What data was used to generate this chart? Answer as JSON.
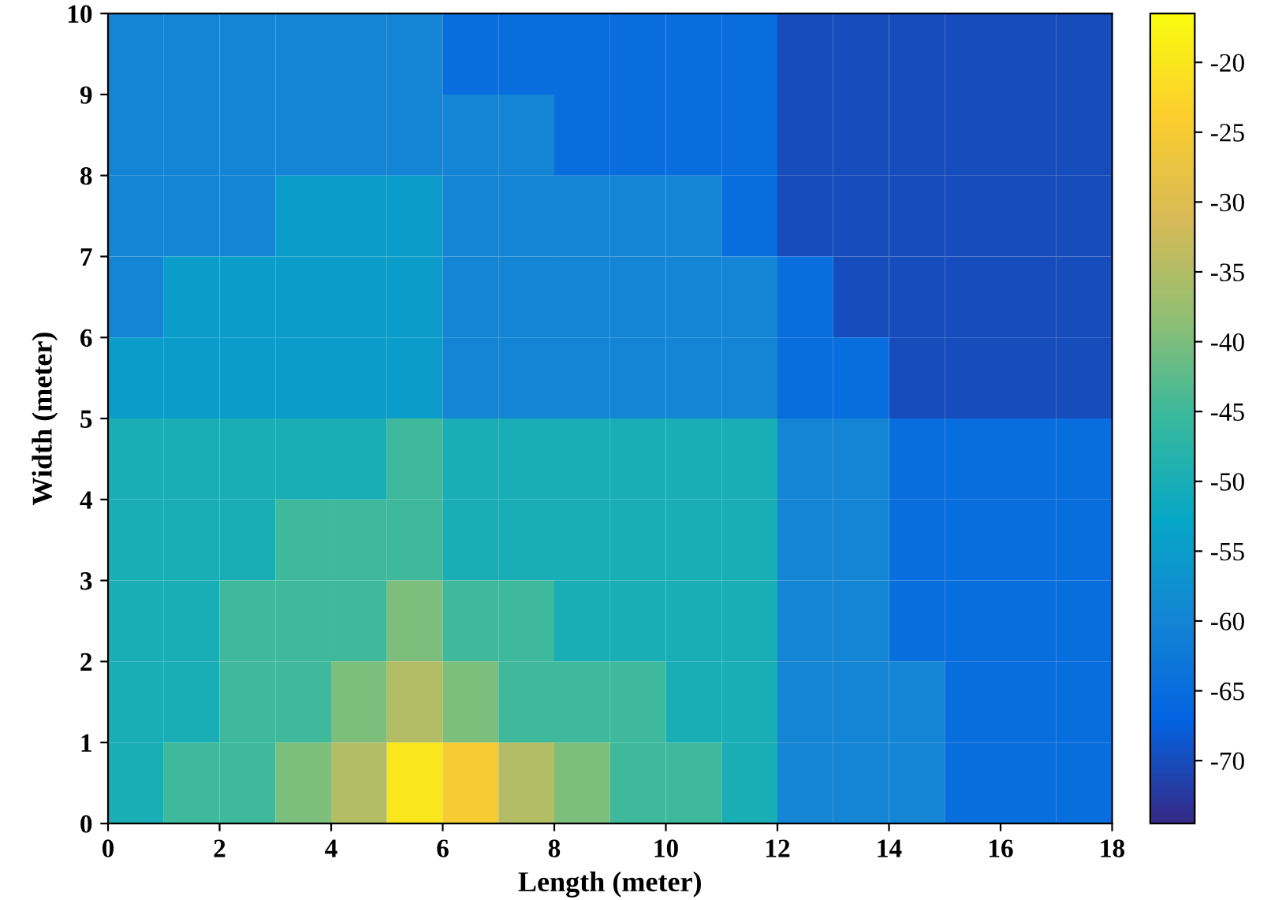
{
  "chart_data": {
    "type": "heatmap",
    "xlabel": "Length (meter)",
    "ylabel": "Width (meter)",
    "x": [
      0.5,
      1.5,
      2.5,
      3.5,
      4.5,
      5.5,
      6.5,
      7.5,
      8.5,
      9.5,
      10.5,
      11.5,
      12.5,
      13.5,
      14.5,
      15.5,
      16.5,
      17.5
    ],
    "y": [
      9.5,
      8.5,
      7.5,
      6.5,
      5.5,
      4.5,
      3.5,
      2.5,
      1.5,
      0.5
    ],
    "cells": [
      [
        -60,
        -60,
        -60,
        -60,
        -60,
        -60,
        -65,
        -65,
        -65,
        -65,
        -65,
        -65,
        -70,
        -70,
        -70,
        -70,
        -70,
        -70
      ],
      [
        -60,
        -60,
        -60,
        -60,
        -60,
        -60,
        -60,
        -60,
        -65,
        -65,
        -65,
        -65,
        -70,
        -70,
        -70,
        -70,
        -70,
        -70
      ],
      [
        -60,
        -60,
        -60,
        -55,
        -55,
        -55,
        -60,
        -60,
        -60,
        -60,
        -60,
        -65,
        -70,
        -70,
        -70,
        -70,
        -70,
        -70
      ],
      [
        -60,
        -55,
        -55,
        -55,
        -55,
        -55,
        -60,
        -60,
        -60,
        -60,
        -60,
        -60,
        -65,
        -70,
        -70,
        -70,
        -70,
        -70
      ],
      [
        -55,
        -55,
        -55,
        -55,
        -55,
        -55,
        -60,
        -60,
        -60,
        -60,
        -60,
        -60,
        -65,
        -65,
        -70,
        -70,
        -70,
        -70
      ],
      [
        -50,
        -50,
        -50,
        -50,
        -50,
        -45,
        -50,
        -50,
        -50,
        -50,
        -50,
        -50,
        -60,
        -60,
        -65,
        -65,
        -65,
        -65
      ],
      [
        -50,
        -50,
        -50,
        -45,
        -45,
        -45,
        -50,
        -50,
        -50,
        -50,
        -50,
        -50,
        -60,
        -60,
        -65,
        -65,
        -65,
        -65
      ],
      [
        -50,
        -50,
        -45,
        -45,
        -45,
        -40,
        -45,
        -45,
        -50,
        -50,
        -50,
        -50,
        -60,
        -60,
        -65,
        -65,
        -65,
        -65
      ],
      [
        -50,
        -50,
        -45,
        -45,
        -40,
        -35,
        -40,
        -45,
        -45,
        -45,
        -50,
        -50,
        -60,
        -60,
        -60,
        -65,
        -65,
        -65
      ],
      [
        -50,
        -45,
        -45,
        -40,
        -35,
        -20,
        -25,
        -35,
        -40,
        -45,
        -45,
        -50,
        -60,
        -60,
        -60,
        -65,
        -65,
        -65
      ]
    ],
    "xlim": [
      0,
      18
    ],
    "ylim": [
      0,
      10
    ],
    "xticks": [
      0,
      2,
      4,
      6,
      8,
      10,
      12,
      14,
      16,
      18
    ],
    "yticks": [
      0,
      1,
      2,
      3,
      4,
      5,
      6,
      7,
      8,
      9,
      10
    ],
    "clim": [
      -74.5,
      -16.5
    ],
    "cticks": [
      -70,
      -65,
      -60,
      -55,
      -50,
      -45,
      -40,
      -35,
      -30,
      -25,
      -20
    ]
  }
}
